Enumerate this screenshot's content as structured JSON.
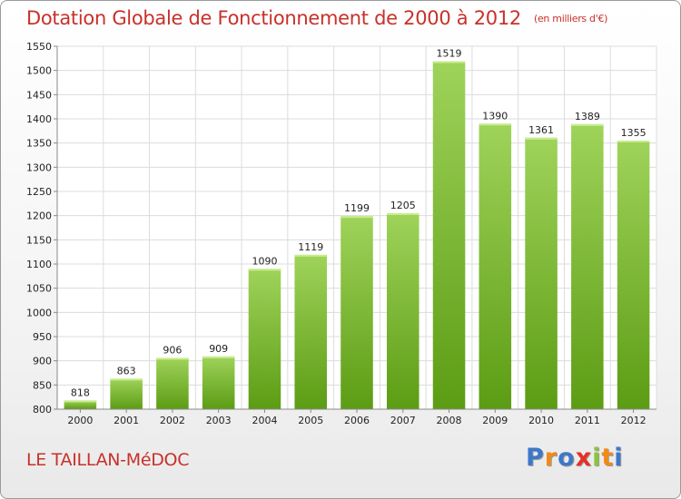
{
  "header": {
    "title": "Dotation Globale de Fonctionnement de 2000 à 2012",
    "subtitle": "(en milliers d'€)"
  },
  "footer": {
    "commune": "LE TAILLAN-MéDOC",
    "logo": {
      "letters": [
        "P",
        "r",
        "o",
        "x",
        "i",
        "t",
        "i"
      ],
      "colors": [
        "#3d78c9",
        "#f08a18",
        "#3d78c9",
        "#e63027",
        "#8ac43f",
        "#f08a18",
        "#3d78c9"
      ]
    }
  },
  "colors": {
    "bar_top": "#9fd35a",
    "bar_bottom": "#5c9c14",
    "title": "#c8312a"
  },
  "chart_data": {
    "type": "bar",
    "title": "Dotation Globale de Fonctionnement de 2000 à 2012",
    "subtitle": "(en milliers d'€)",
    "categories": [
      "2000",
      "2001",
      "2002",
      "2003",
      "2004",
      "2005",
      "2006",
      "2007",
      "2008",
      "2009",
      "2010",
      "2011",
      "2012"
    ],
    "values": [
      818,
      863,
      906,
      909,
      1090,
      1119,
      1199,
      1205,
      1519,
      1390,
      1361,
      1389,
      1355
    ],
    "ylim": [
      800,
      1550
    ],
    "yticks": [
      800,
      850,
      900,
      950,
      1000,
      1050,
      1100,
      1150,
      1200,
      1250,
      1300,
      1350,
      1400,
      1450,
      1500,
      1550
    ],
    "grid": true,
    "data_labels": true
  }
}
